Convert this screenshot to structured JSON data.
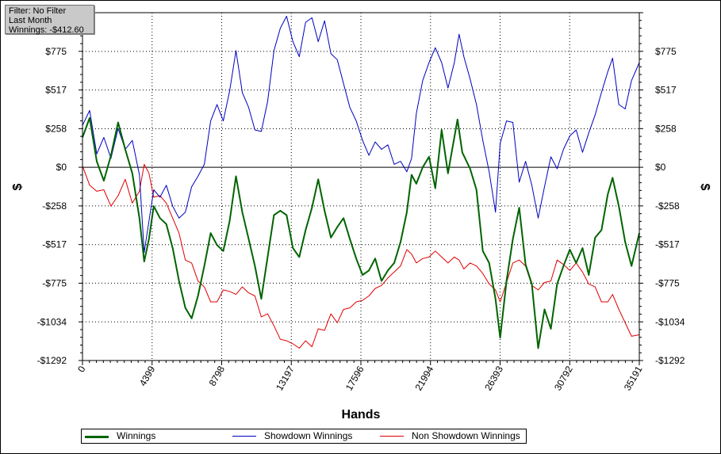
{
  "info_box": {
    "filter": "Filter: No Filter",
    "period": "Last Month",
    "winnings": "Winnings: -$412.60"
  },
  "legend": {
    "items": [
      {
        "label": "Winnings",
        "color": "#006400"
      },
      {
        "label": "Showdown Winnings",
        "color": "#0000c0"
      },
      {
        "label": "Non Showdown Winnings",
        "color": "#e00000"
      }
    ]
  },
  "chart_data": {
    "type": "line",
    "xlabel": "Hands",
    "ylabel": "$",
    "xlim": [
      0,
      35191
    ],
    "ylim": [
      -1292,
      1034
    ],
    "x_ticks": [
      0,
      4399,
      8798,
      13197,
      17596,
      21994,
      26393,
      30792,
      35191
    ],
    "y_ticks": [
      {
        "value": 775,
        "label": "$775"
      },
      {
        "value": 517,
        "label": "$517"
      },
      {
        "value": 258,
        "label": "$258"
      },
      {
        "value": 0,
        "label": "$0"
      },
      {
        "value": -258,
        "label": "-$258"
      },
      {
        "value": -517,
        "label": "-$517"
      },
      {
        "value": -775,
        "label": "-$775"
      },
      {
        "value": -1034,
        "label": "-$1034"
      },
      {
        "value": -1292,
        "label": "-$1292"
      }
    ],
    "grid": true,
    "legend_position": "bottom",
    "series": [
      {
        "name": "Winnings",
        "color": "#006400",
        "points": [
          [
            0,
            200
          ],
          [
            450,
            330
          ],
          [
            900,
            40
          ],
          [
            1350,
            -90
          ],
          [
            1800,
            80
          ],
          [
            2250,
            300
          ],
          [
            2700,
            120
          ],
          [
            3150,
            -40
          ],
          [
            3600,
            -340
          ],
          [
            3900,
            -630
          ],
          [
            4200,
            -480
          ],
          [
            4500,
            -260
          ],
          [
            4900,
            -340
          ],
          [
            5300,
            -380
          ],
          [
            5700,
            -540
          ],
          [
            6100,
            -760
          ],
          [
            6500,
            -940
          ],
          [
            6900,
            -1010
          ],
          [
            7300,
            -860
          ],
          [
            7700,
            -660
          ],
          [
            8100,
            -440
          ],
          [
            8500,
            -520
          ],
          [
            8900,
            -560
          ],
          [
            9300,
            -360
          ],
          [
            9700,
            -60
          ],
          [
            10100,
            -300
          ],
          [
            10500,
            -480
          ],
          [
            10900,
            -660
          ],
          [
            11300,
            -880
          ],
          [
            11700,
            -600
          ],
          [
            12100,
            -320
          ],
          [
            12500,
            -290
          ],
          [
            12900,
            -320
          ],
          [
            13300,
            -540
          ],
          [
            13700,
            -600
          ],
          [
            14100,
            -420
          ],
          [
            14500,
            -270
          ],
          [
            14900,
            -80
          ],
          [
            15300,
            -290
          ],
          [
            15700,
            -470
          ],
          [
            16100,
            -400
          ],
          [
            16500,
            -340
          ],
          [
            16900,
            -480
          ],
          [
            17300,
            -610
          ],
          [
            17700,
            -720
          ],
          [
            18100,
            -690
          ],
          [
            18500,
            -610
          ],
          [
            18900,
            -760
          ],
          [
            19300,
            -690
          ],
          [
            19700,
            -640
          ],
          [
            20100,
            -500
          ],
          [
            20500,
            -300
          ],
          [
            20800,
            -50
          ],
          [
            21100,
            -110
          ],
          [
            21500,
            0
          ],
          [
            21900,
            70
          ],
          [
            22300,
            -140
          ],
          [
            22700,
            250
          ],
          [
            23100,
            -40
          ],
          [
            23500,
            200
          ],
          [
            23700,
            320
          ],
          [
            24000,
            100
          ],
          [
            24500,
            -10
          ],
          [
            24900,
            -150
          ],
          [
            25300,
            -560
          ],
          [
            25700,
            -640
          ],
          [
            26100,
            -880
          ],
          [
            26400,
            -1140
          ],
          [
            26800,
            -760
          ],
          [
            27200,
            -480
          ],
          [
            27600,
            -270
          ],
          [
            28000,
            -650
          ],
          [
            28400,
            -780
          ],
          [
            28800,
            -1210
          ],
          [
            29200,
            -950
          ],
          [
            29600,
            -1080
          ],
          [
            30000,
            -780
          ],
          [
            30400,
            -660
          ],
          [
            30800,
            -550
          ],
          [
            31200,
            -640
          ],
          [
            31600,
            -540
          ],
          [
            32000,
            -720
          ],
          [
            32400,
            -470
          ],
          [
            32800,
            -420
          ],
          [
            33200,
            -180
          ],
          [
            33500,
            -70
          ],
          [
            33900,
            -260
          ],
          [
            34300,
            -500
          ],
          [
            34700,
            -660
          ],
          [
            35191,
            -440
          ]
        ]
      },
      {
        "name": "Showdown Winnings",
        "color": "#0000c0",
        "points": [
          [
            0,
            280
          ],
          [
            450,
            380
          ],
          [
            900,
            90
          ],
          [
            1350,
            200
          ],
          [
            1800,
            60
          ],
          [
            2250,
            260
          ],
          [
            2700,
            120
          ],
          [
            3150,
            180
          ],
          [
            3600,
            -50
          ],
          [
            3900,
            -570
          ],
          [
            4200,
            -360
          ],
          [
            4500,
            -150
          ],
          [
            4900,
            -200
          ],
          [
            5300,
            -120
          ],
          [
            5700,
            -260
          ],
          [
            6100,
            -340
          ],
          [
            6500,
            -300
          ],
          [
            6900,
            -130
          ],
          [
            7300,
            -60
          ],
          [
            7700,
            20
          ],
          [
            8100,
            310
          ],
          [
            8500,
            420
          ],
          [
            8900,
            310
          ],
          [
            9300,
            510
          ],
          [
            9700,
            780
          ],
          [
            10100,
            500
          ],
          [
            10500,
            400
          ],
          [
            10900,
            250
          ],
          [
            11300,
            240
          ],
          [
            11700,
            440
          ],
          [
            12100,
            780
          ],
          [
            12500,
            930
          ],
          [
            12900,
            1010
          ],
          [
            13300,
            840
          ],
          [
            13700,
            740
          ],
          [
            14100,
            970
          ],
          [
            14500,
            1000
          ],
          [
            14900,
            840
          ],
          [
            15300,
            980
          ],
          [
            15700,
            760
          ],
          [
            16100,
            720
          ],
          [
            16500,
            560
          ],
          [
            16900,
            400
          ],
          [
            17300,
            310
          ],
          [
            17700,
            180
          ],
          [
            18100,
            80
          ],
          [
            18500,
            170
          ],
          [
            18900,
            120
          ],
          [
            19300,
            150
          ],
          [
            19700,
            20
          ],
          [
            20100,
            40
          ],
          [
            20500,
            -30
          ],
          [
            20800,
            60
          ],
          [
            21100,
            360
          ],
          [
            21500,
            580
          ],
          [
            21900,
            700
          ],
          [
            22300,
            800
          ],
          [
            22700,
            700
          ],
          [
            23100,
            530
          ],
          [
            23500,
            700
          ],
          [
            23800,
            890
          ],
          [
            24100,
            740
          ],
          [
            24500,
            590
          ],
          [
            24900,
            420
          ],
          [
            25300,
            180
          ],
          [
            25700,
            -30
          ],
          [
            26100,
            -300
          ],
          [
            26400,
            160
          ],
          [
            26800,
            310
          ],
          [
            27200,
            300
          ],
          [
            27600,
            -100
          ],
          [
            28000,
            40
          ],
          [
            28400,
            -120
          ],
          [
            28800,
            -340
          ],
          [
            29200,
            -130
          ],
          [
            29600,
            70
          ],
          [
            30000,
            -10
          ],
          [
            30400,
            120
          ],
          [
            30800,
            210
          ],
          [
            31200,
            250
          ],
          [
            31600,
            100
          ],
          [
            32000,
            230
          ],
          [
            32400,
            350
          ],
          [
            32800,
            500
          ],
          [
            33200,
            640
          ],
          [
            33500,
            730
          ],
          [
            33900,
            420
          ],
          [
            34300,
            390
          ],
          [
            34700,
            580
          ],
          [
            35191,
            700
          ]
        ]
      },
      {
        "name": "Non Showdown Winnings",
        "color": "#e00000",
        "points": [
          [
            0,
            10
          ],
          [
            450,
            -120
          ],
          [
            900,
            -160
          ],
          [
            1350,
            -150
          ],
          [
            1800,
            -260
          ],
          [
            2250,
            -190
          ],
          [
            2700,
            -80
          ],
          [
            3150,
            -240
          ],
          [
            3600,
            -160
          ],
          [
            3900,
            20
          ],
          [
            4200,
            -40
          ],
          [
            4500,
            -200
          ],
          [
            4900,
            -190
          ],
          [
            5300,
            -240
          ],
          [
            5700,
            -340
          ],
          [
            6100,
            -440
          ],
          [
            6500,
            -620
          ],
          [
            6900,
            -640
          ],
          [
            7300,
            -760
          ],
          [
            7700,
            -800
          ],
          [
            8100,
            -900
          ],
          [
            8500,
            -900
          ],
          [
            8900,
            -820
          ],
          [
            9300,
            -830
          ],
          [
            9700,
            -850
          ],
          [
            10100,
            -800
          ],
          [
            10500,
            -840
          ],
          [
            10900,
            -860
          ],
          [
            11300,
            -1000
          ],
          [
            11700,
            -980
          ],
          [
            12100,
            -1060
          ],
          [
            12500,
            -1150
          ],
          [
            12900,
            -1160
          ],
          [
            13300,
            -1180
          ],
          [
            13700,
            -1210
          ],
          [
            14100,
            -1160
          ],
          [
            14500,
            -1200
          ],
          [
            14900,
            -1080
          ],
          [
            15300,
            -1090
          ],
          [
            15700,
            -980
          ],
          [
            16100,
            -1040
          ],
          [
            16500,
            -950
          ],
          [
            16900,
            -940
          ],
          [
            17300,
            -900
          ],
          [
            17700,
            -890
          ],
          [
            18100,
            -860
          ],
          [
            18500,
            -810
          ],
          [
            18900,
            -790
          ],
          [
            19300,
            -740
          ],
          [
            19700,
            -700
          ],
          [
            20100,
            -660
          ],
          [
            20500,
            -550
          ],
          [
            20800,
            -580
          ],
          [
            21100,
            -640
          ],
          [
            21500,
            -610
          ],
          [
            21900,
            -600
          ],
          [
            22300,
            -560
          ],
          [
            22700,
            -600
          ],
          [
            23100,
            -640
          ],
          [
            23500,
            -600
          ],
          [
            23800,
            -620
          ],
          [
            24100,
            -680
          ],
          [
            24500,
            -640
          ],
          [
            24900,
            -660
          ],
          [
            25300,
            -710
          ],
          [
            25700,
            -780
          ],
          [
            26100,
            -820
          ],
          [
            26400,
            -900
          ],
          [
            26800,
            -770
          ],
          [
            27200,
            -640
          ],
          [
            27600,
            -620
          ],
          [
            28000,
            -660
          ],
          [
            28400,
            -790
          ],
          [
            28800,
            -820
          ],
          [
            29200,
            -770
          ],
          [
            29600,
            -760
          ],
          [
            30000,
            -620
          ],
          [
            30400,
            -650
          ],
          [
            30800,
            -690
          ],
          [
            31200,
            -640
          ],
          [
            31600,
            -700
          ],
          [
            32000,
            -780
          ],
          [
            32400,
            -800
          ],
          [
            32800,
            -900
          ],
          [
            33200,
            -900
          ],
          [
            33500,
            -850
          ],
          [
            33900,
            -950
          ],
          [
            34300,
            -1040
          ],
          [
            34700,
            -1130
          ],
          [
            35191,
            -1120
          ]
        ]
      }
    ]
  }
}
